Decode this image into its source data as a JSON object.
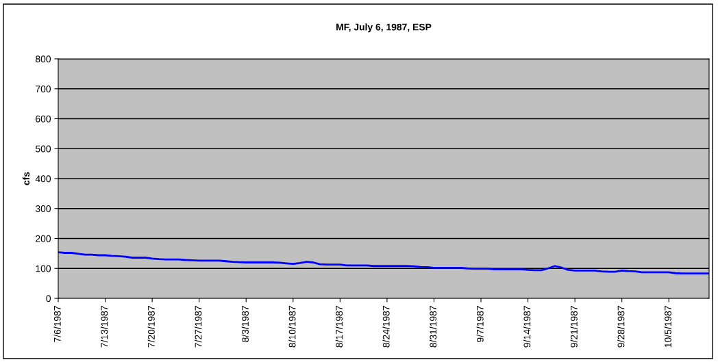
{
  "chart_data": {
    "type": "line",
    "title": "MF, July 6, 1987, ESP",
    "ylabel": "cfs",
    "categories": [
      "7/6/1987",
      null,
      null,
      null,
      null,
      null,
      null,
      "7/13/1987",
      null,
      null,
      null,
      null,
      null,
      null,
      "7/20/1987",
      null,
      null,
      null,
      null,
      null,
      null,
      "7/27/1987",
      null,
      null,
      null,
      null,
      null,
      null,
      "8/3/1987",
      null,
      null,
      null,
      null,
      null,
      null,
      "8/10/1987",
      null,
      null,
      null,
      null,
      null,
      null,
      "8/17/1987",
      null,
      null,
      null,
      null,
      null,
      null,
      "8/24/1987",
      null,
      null,
      null,
      null,
      null,
      null,
      "8/31/1987",
      null,
      null,
      null,
      null,
      null,
      null,
      "9/7/1987",
      null,
      null,
      null,
      null,
      null,
      null,
      "9/14/1987",
      null,
      null,
      null,
      null,
      null,
      null,
      "9/21/1987",
      null,
      null,
      null,
      null,
      null,
      null,
      "9/28/1987",
      null,
      null,
      null,
      null,
      null,
      null,
      "10/5/1987",
      null,
      null,
      null,
      null,
      null,
      null
    ],
    "series": [
      {
        "color": "#0000ff",
        "values": [
          154,
          152,
          152,
          149,
          146,
          146,
          144,
          144,
          142,
          141,
          139,
          136,
          136,
          136,
          133,
          131,
          130,
          130,
          130,
          128,
          127,
          126,
          126,
          126,
          126,
          124,
          122,
          121,
          120,
          120,
          120,
          120,
          120,
          119,
          117,
          115,
          118,
          122,
          120,
          114,
          113,
          113,
          113,
          110,
          110,
          110,
          110,
          108,
          108,
          108,
          108,
          108,
          108,
          107,
          105,
          104,
          102,
          102,
          102,
          102,
          102,
          100,
          99,
          99,
          99,
          97,
          97,
          97,
          97,
          97,
          95,
          94,
          94,
          100,
          108,
          103,
          95,
          93,
          93,
          93,
          93,
          90,
          89,
          89,
          93,
          91,
          90,
          87,
          87,
          87,
          87,
          87,
          84,
          83,
          83,
          83,
          83,
          83
        ]
      }
    ],
    "ylim": [
      0,
      800
    ],
    "yticks": [
      0,
      100,
      200,
      300,
      400,
      500,
      600,
      700,
      800
    ],
    "grid": "y",
    "marker": "none",
    "line_style": "solid"
  }
}
